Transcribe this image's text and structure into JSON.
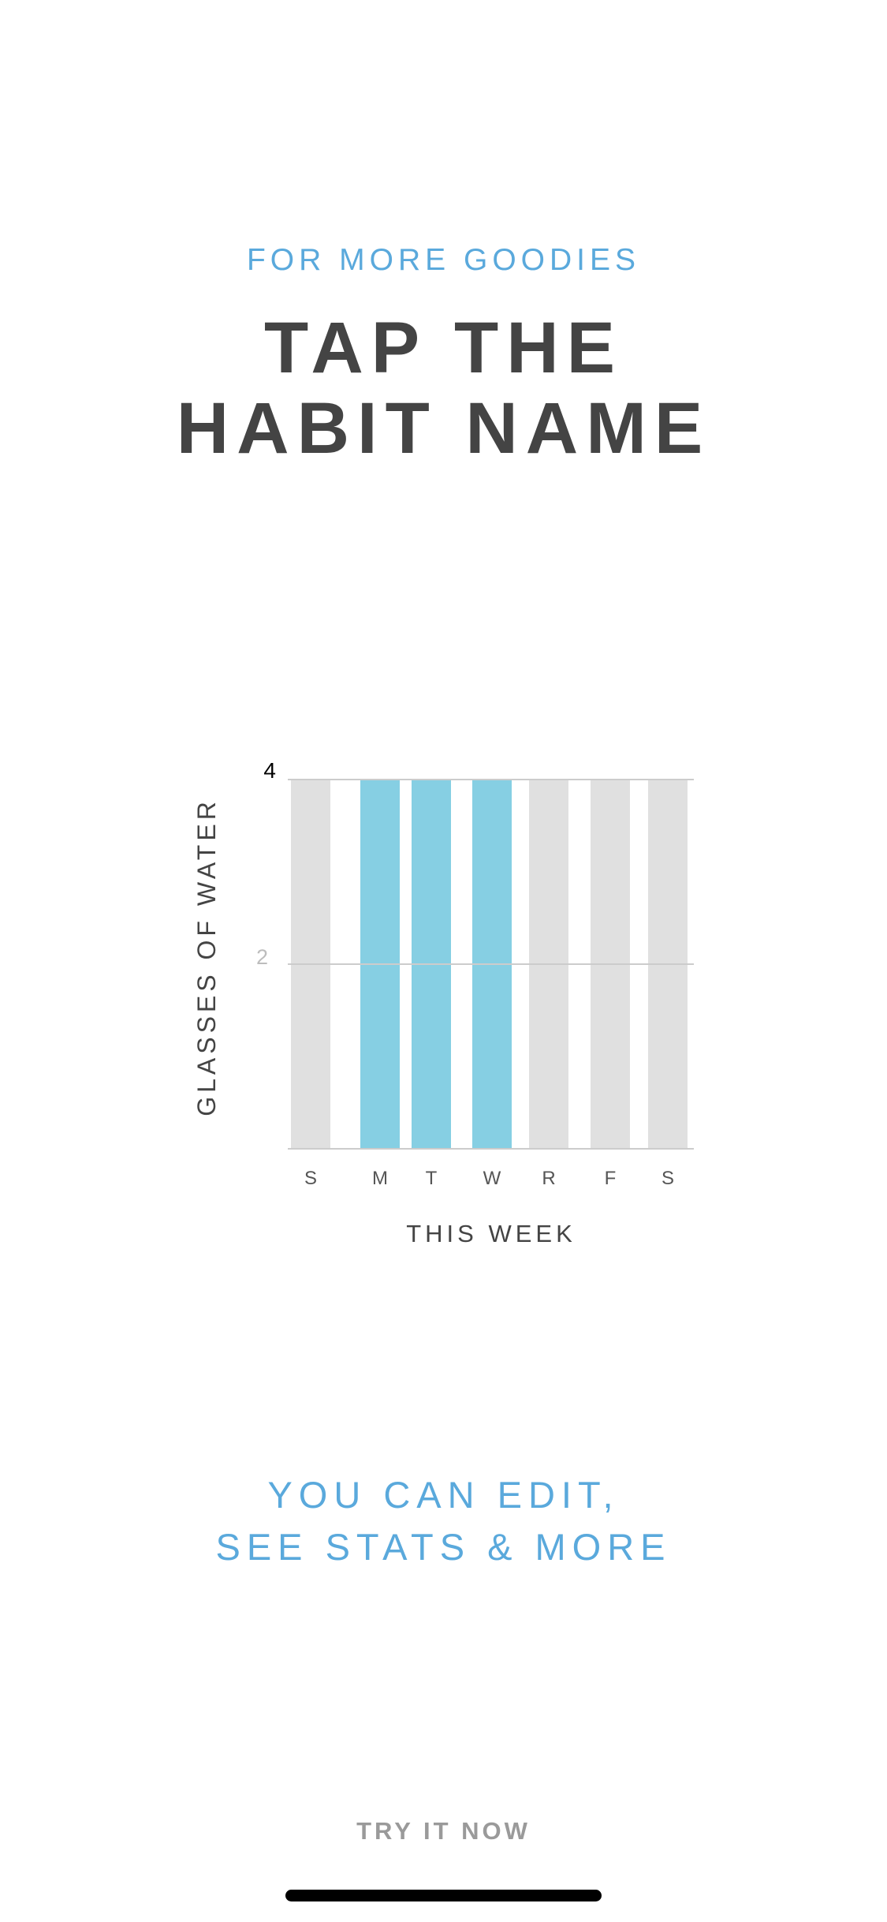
{
  "header": {
    "kicker": "FOR MORE GOODIES",
    "title_line1": "TAP THE",
    "title_line2": "HABIT NAME"
  },
  "chart_data": {
    "type": "bar",
    "categories": [
      "S",
      "M",
      "T",
      "W",
      "R",
      "F",
      "S"
    ],
    "values": [
      0,
      4,
      4,
      4,
      0,
      0,
      0
    ],
    "goal": 4,
    "ylabel": "GLASSES OF WATER",
    "xlabel": "THIS WEEK",
    "ylim": [
      0,
      4
    ],
    "yticks": [
      2,
      4
    ],
    "ytick_labels": [
      "2",
      "4"
    ],
    "grid": true,
    "colors": {
      "filled": "#86cfe3",
      "empty": "#e0e0e0",
      "grid": "#cccccc",
      "axis_text": "#444444"
    }
  },
  "body": {
    "line1": "YOU CAN EDIT,",
    "line2": "SEE STATS & MORE"
  },
  "cta": {
    "label": "TRY IT NOW"
  }
}
